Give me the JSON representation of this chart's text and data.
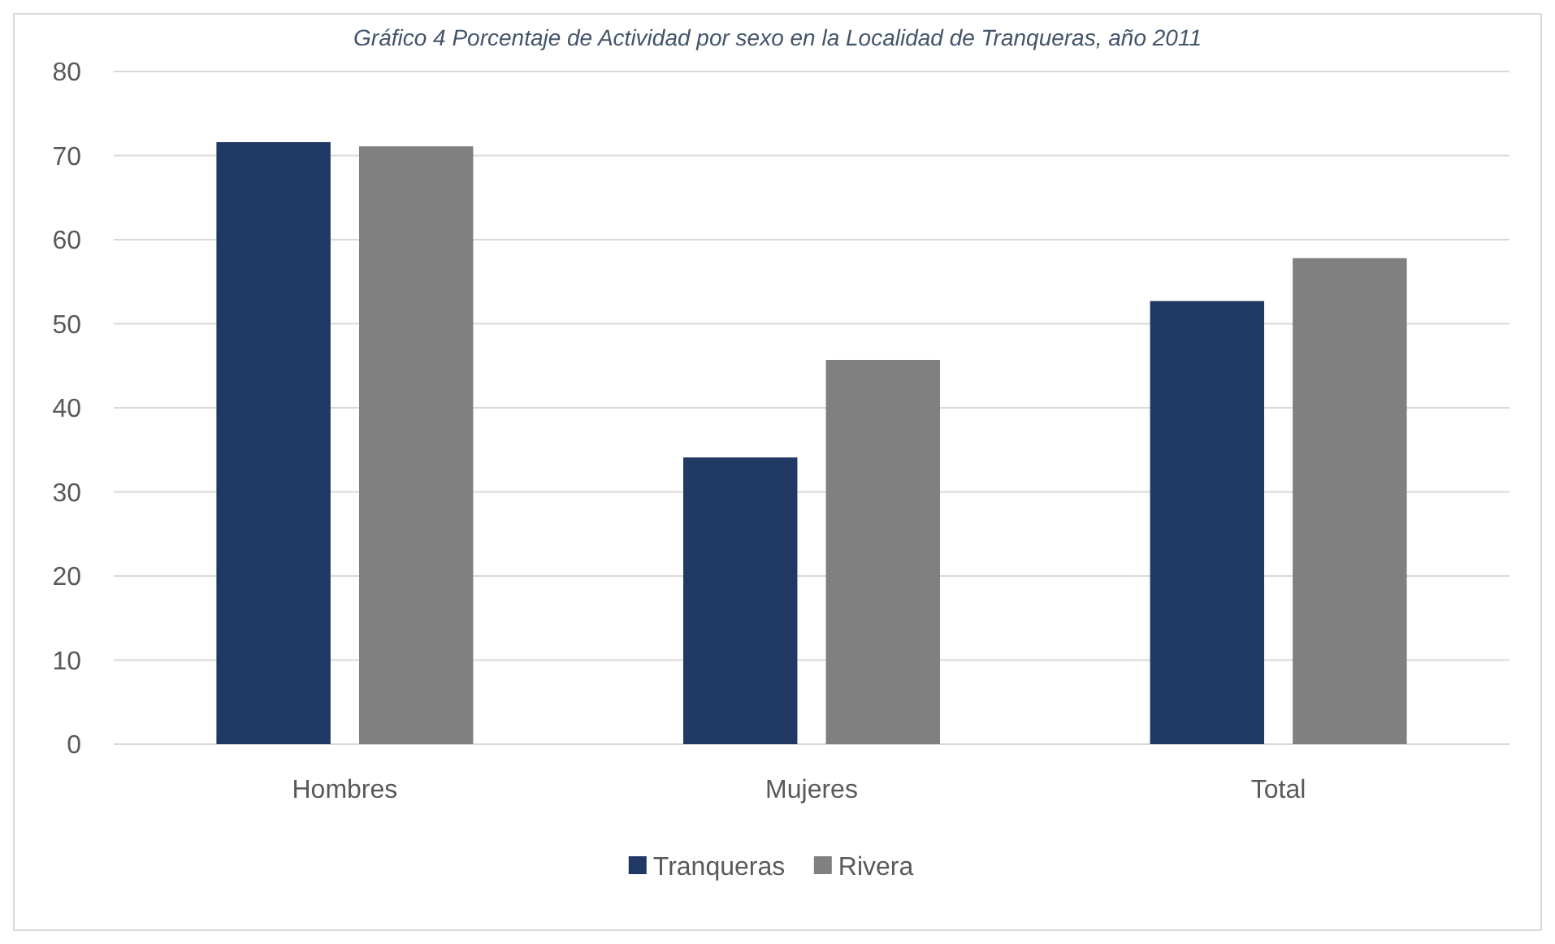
{
  "chart_data": {
    "type": "bar",
    "title": "Gráfico 4 Porcentaje de Actividad por sexo en la Localidad de Tranqueras, año 2011",
    "categories": [
      "Hombres",
      "Mujeres",
      "Total"
    ],
    "series": [
      {
        "name": "Tranqueras",
        "color": "#203864",
        "values": [
          71.6,
          34.1,
          52.7
        ]
      },
      {
        "name": "Rivera",
        "color": "#808080",
        "values": [
          71.1,
          45.7,
          57.8
        ]
      }
    ],
    "ylim": [
      0,
      80
    ],
    "yticks": [
      0,
      10,
      20,
      30,
      40,
      50,
      60,
      70,
      80
    ],
    "grid": "y",
    "legend": "bottom"
  }
}
